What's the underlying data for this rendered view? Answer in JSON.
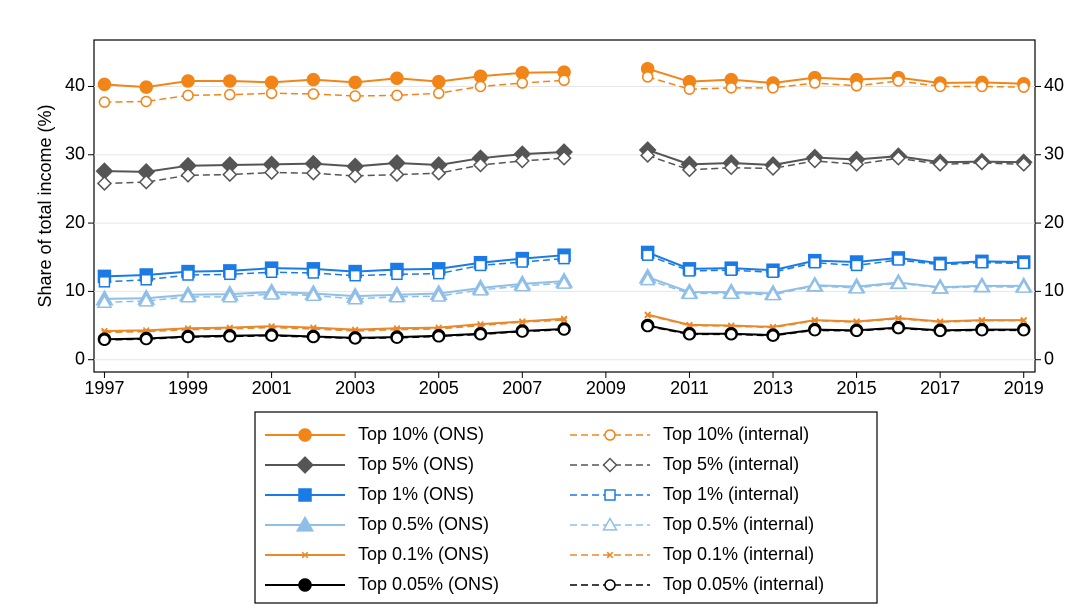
{
  "chart_data": {
    "type": "line",
    "y_label": "Share of total income (%)",
    "x": [
      1997,
      1998,
      1999,
      2000,
      2001,
      2002,
      2003,
      2004,
      2005,
      2006,
      2007,
      2008,
      2009,
      2010,
      2011,
      2012,
      2013,
      2014,
      2015,
      2016,
      2017,
      2018,
      2019
    ],
    "xlim": [
      1996.75,
      2019.27
    ],
    "xticks": [
      1997,
      1999,
      2001,
      2003,
      2005,
      2007,
      2009,
      2011,
      2013,
      2015,
      2017,
      2019
    ],
    "ylim": [
      -1.8,
      46.8
    ],
    "yticks": [
      0,
      10,
      20,
      30,
      40
    ],
    "grid": true,
    "series": [
      {
        "name": "Top 10% (ONS)",
        "color": "#f28518",
        "marker": "circle",
        "filled": true,
        "dashed": false,
        "values": [
          40.3,
          39.9,
          40.8,
          40.8,
          40.6,
          41.0,
          40.6,
          41.2,
          40.7,
          41.5,
          42.0,
          42.1,
          null,
          42.6,
          40.7,
          41.0,
          40.5,
          41.3,
          41.0,
          41.3,
          40.5,
          40.6,
          40.4
        ]
      },
      {
        "name": "Top 10% (internal)",
        "color": "#f28518",
        "marker": "circle",
        "filled": false,
        "dashed": true,
        "values": [
          37.7,
          37.8,
          38.7,
          38.8,
          39.0,
          38.9,
          38.6,
          38.7,
          39.0,
          40.0,
          40.5,
          40.9,
          null,
          41.4,
          39.6,
          39.8,
          39.8,
          40.5,
          40.1,
          40.8,
          40.0,
          40.0,
          39.9
        ]
      },
      {
        "name": "Top 5% (ONS)",
        "color": "#555555",
        "marker": "diamond",
        "filled": true,
        "dashed": false,
        "values": [
          27.6,
          27.5,
          28.4,
          28.5,
          28.6,
          28.7,
          28.3,
          28.8,
          28.5,
          29.5,
          30.1,
          30.4,
          null,
          30.7,
          28.6,
          28.8,
          28.5,
          29.6,
          29.3,
          29.8,
          28.9,
          29.0,
          28.9
        ]
      },
      {
        "name": "Top 5% (internal)",
        "color": "#555555",
        "marker": "diamond",
        "filled": false,
        "dashed": true,
        "values": [
          25.8,
          26.0,
          27.0,
          27.1,
          27.4,
          27.3,
          26.9,
          27.1,
          27.3,
          28.5,
          29.1,
          29.5,
          null,
          29.9,
          27.8,
          28.1,
          28.0,
          29.1,
          28.6,
          29.5,
          28.6,
          28.8,
          28.6
        ]
      },
      {
        "name": "Top 1% (ONS)",
        "color": "#1a7ae6",
        "marker": "square",
        "filled": true,
        "dashed": false,
        "values": [
          12.2,
          12.4,
          12.9,
          13.0,
          13.4,
          13.3,
          12.9,
          13.2,
          13.3,
          14.2,
          14.8,
          15.3,
          null,
          15.7,
          13.3,
          13.4,
          13.1,
          14.5,
          14.3,
          14.9,
          14.1,
          14.4,
          14.3
        ]
      },
      {
        "name": "Top 1% (internal)",
        "color": "#1a7ae6",
        "marker": "square",
        "filled": false,
        "dashed": true,
        "values": [
          11.4,
          11.7,
          12.4,
          12.5,
          12.8,
          12.7,
          12.3,
          12.5,
          12.6,
          13.8,
          14.3,
          14.8,
          null,
          15.3,
          13.0,
          13.1,
          12.8,
          14.2,
          13.8,
          14.6,
          13.9,
          14.2,
          14.1
        ]
      },
      {
        "name": "Top 0.5% (ONS)",
        "color": "#8fbfe8",
        "marker": "triangle",
        "filled": true,
        "dashed": false,
        "values": [
          8.9,
          9.0,
          9.5,
          9.6,
          9.9,
          9.7,
          9.3,
          9.5,
          9.7,
          10.5,
          11.1,
          11.5,
          null,
          12.1,
          9.9,
          9.9,
          9.7,
          10.9,
          10.7,
          11.3,
          10.6,
          10.8,
          10.8
        ]
      },
      {
        "name": "Top 0.5% (internal)",
        "color": "#8fbfe8",
        "marker": "triangle",
        "filled": false,
        "dashed": true,
        "values": [
          8.4,
          8.6,
          9.2,
          9.2,
          9.6,
          9.4,
          8.9,
          9.2,
          9.3,
          10.2,
          10.8,
          11.2,
          null,
          11.7,
          9.7,
          9.7,
          9.5,
          10.8,
          10.5,
          11.2,
          10.5,
          10.7,
          10.6
        ]
      },
      {
        "name": "Top 0.1% (ONS)",
        "color": "#e8892c",
        "marker": "x",
        "filled": true,
        "dashed": false,
        "values": [
          4.2,
          4.3,
          4.6,
          4.7,
          4.9,
          4.7,
          4.4,
          4.6,
          4.7,
          5.2,
          5.6,
          6.0,
          null,
          6.6,
          5.1,
          5.0,
          4.8,
          5.8,
          5.6,
          6.1,
          5.6,
          5.8,
          5.8
        ]
      },
      {
        "name": "Top 0.1% (internal)",
        "color": "#e8892c",
        "marker": "x",
        "filled": false,
        "dashed": true,
        "values": [
          4.0,
          4.1,
          4.4,
          4.5,
          4.7,
          4.5,
          4.2,
          4.4,
          4.5,
          5.0,
          5.5,
          5.8,
          null,
          6.5,
          5.0,
          4.9,
          4.7,
          5.7,
          5.5,
          6.0,
          5.5,
          5.7,
          5.7
        ]
      },
      {
        "name": "Top 0.05% (ONS)",
        "color": "#000000",
        "marker": "circle",
        "filled": true,
        "dashed": false,
        "values": [
          3.0,
          3.1,
          3.4,
          3.5,
          3.6,
          3.4,
          3.2,
          3.3,
          3.5,
          3.8,
          4.2,
          4.5,
          null,
          5.0,
          3.8,
          3.8,
          3.6,
          4.4,
          4.3,
          4.7,
          4.3,
          4.4,
          4.4
        ]
      },
      {
        "name": "Top 0.05% (internal)",
        "color": "#000000",
        "marker": "circle",
        "filled": false,
        "dashed": true,
        "values": [
          2.9,
          3.0,
          3.3,
          3.4,
          3.5,
          3.3,
          3.1,
          3.2,
          3.4,
          3.7,
          4.1,
          4.4,
          null,
          4.9,
          3.7,
          3.7,
          3.5,
          4.3,
          4.2,
          4.6,
          4.2,
          4.3,
          4.3
        ]
      }
    ]
  }
}
